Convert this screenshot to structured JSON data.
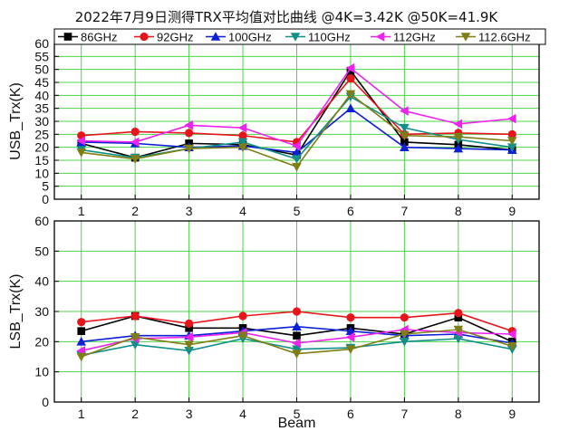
{
  "chart_data": [
    {
      "type": "line",
      "title": "2022年7月9日测得TRX平均值对比曲线 @4K=3.42K @50K=41.9K",
      "xlabel": "",
      "ylabel": "USB_Trx(K)",
      "x": [
        1,
        2,
        3,
        4,
        5,
        6,
        7,
        8,
        9
      ],
      "xlim": [
        0.5,
        9.5
      ],
      "ylim": [
        0,
        60
      ],
      "yticks": [
        0,
        5,
        10,
        15,
        20,
        25,
        30,
        35,
        40,
        45,
        50,
        55,
        60
      ],
      "grid": true,
      "legend": "top",
      "series": [
        {
          "name": "86GHz",
          "color": "#000000",
          "marker": "square",
          "values": [
            21.5,
            16,
            21.5,
            21,
            17,
            49.5,
            22,
            21,
            19
          ]
        },
        {
          "name": "92GHz",
          "color": "#e8141c",
          "marker": "circle",
          "values": [
            24.5,
            26,
            25.5,
            24.5,
            22,
            46.5,
            25,
            25.5,
            25
          ]
        },
        {
          "name": "100GHz",
          "color": "#0b1fd6",
          "marker": "triangle-up",
          "values": [
            22,
            21.5,
            20,
            20.5,
            18,
            35,
            20,
            19.5,
            19
          ]
        },
        {
          "name": "110GHz",
          "color": "#138f8a",
          "marker": "triangle-down",
          "values": [
            19,
            16,
            19.5,
            22,
            15.5,
            39.5,
            27.5,
            23,
            20
          ]
        },
        {
          "name": "112GHz",
          "color": "#ee22ee",
          "marker": "triangle-left",
          "values": [
            22.5,
            22,
            28.5,
            27.5,
            20.5,
            50.5,
            34,
            29,
            31
          ]
        },
        {
          "name": "112.6GHz",
          "color": "#7e7e14",
          "marker": "triangle-down",
          "values": [
            18,
            15.5,
            19.5,
            20,
            12.5,
            40.5,
            24.5,
            24,
            22.5
          ]
        }
      ]
    },
    {
      "type": "line",
      "title": "",
      "xlabel": "Beam",
      "ylabel": "LSB_Trx(K)",
      "x": [
        1,
        2,
        3,
        4,
        5,
        6,
        7,
        8,
        9
      ],
      "xlim": [
        0.5,
        9.5
      ],
      "ylim": [
        0,
        60
      ],
      "yticks": [
        0,
        10,
        20,
        30,
        40,
        50,
        60
      ],
      "grid": true,
      "series": [
        {
          "name": "86GHz",
          "color": "#000000",
          "marker": "square",
          "values": [
            23.5,
            28.5,
            24.5,
            24.5,
            22,
            24.5,
            22.5,
            28,
            20
          ]
        },
        {
          "name": "92GHz",
          "color": "#e8141c",
          "marker": "circle",
          "values": [
            26.5,
            28.5,
            26,
            28.5,
            30,
            28,
            28,
            29.5,
            23.5
          ]
        },
        {
          "name": "100GHz",
          "color": "#0b1fd6",
          "marker": "triangle-up",
          "values": [
            20,
            22,
            22,
            23.5,
            25,
            23.5,
            22,
            22.5,
            19.5
          ]
        },
        {
          "name": "110GHz",
          "color": "#138f8a",
          "marker": "triangle-down",
          "values": [
            15.5,
            19,
            17,
            21,
            17.5,
            18,
            20,
            21,
            17.5
          ]
        },
        {
          "name": "112GHz",
          "color": "#ee22ee",
          "marker": "triangle-left",
          "values": [
            17,
            21,
            21.5,
            23,
            19.5,
            21.5,
            24,
            23,
            22.5
          ]
        },
        {
          "name": "112.6GHz",
          "color": "#7e7e14",
          "marker": "triangle-down",
          "values": [
            15,
            21.5,
            19,
            22,
            16,
            17.5,
            22.5,
            24,
            18.5
          ]
        }
      ]
    }
  ]
}
